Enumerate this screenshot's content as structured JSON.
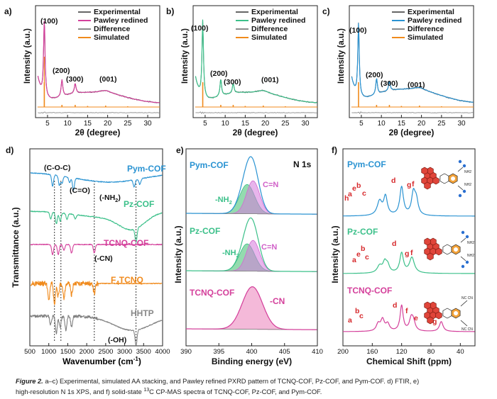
{
  "colors": {
    "pink": "#d4409b",
    "green": "#3cc08a",
    "blue": "#2a93d2",
    "orange": "#f08a1c",
    "gray": "#7a7a7a",
    "pyrBody": "#e0453a",
    "pyrRing": "#e07a1a",
    "nitrogen": "#2a6fd0",
    "labelRed": "#d6282b"
  },
  "caption": {
    "prefix": "Figure 2.",
    "line1": "a–c) Experimental, simulated AA stacking, and Pawley refined PXRD pattern of TCNQ-COF, Pz-COF, and Pym-COF. d) FTIR, e)",
    "line2a": "high-resolution N  1s XPS, and f) solid-state ",
    "line2sup": "13",
    "line2b": "C CP-MAS spectra of TCNQ-COF, Pz-COF, and Pym-COF."
  },
  "chart_data": [
    {
      "type": "line",
      "panel": "a)",
      "xlabel": "2θ (degree)",
      "ylabel": "Intensity (a.u.)",
      "xlim": [
        2,
        33
      ],
      "xticks": [
        5,
        10,
        15,
        20,
        25,
        30
      ],
      "legend": [
        "Experimental",
        "Pawley redined",
        "Difference",
        "Simulated"
      ],
      "peak_labels": [
        "(100)",
        "(200)",
        "(300)",
        "(001)"
      ],
      "peaks_deg": [
        4.2,
        8.6,
        11.9,
        19.5
      ],
      "series": [
        {
          "name": "Experimental",
          "color_key": "gray"
        },
        {
          "name": "Pawley redined",
          "color_key": "pink"
        },
        {
          "name": "Difference",
          "color_key": "gray"
        },
        {
          "name": "Simulated",
          "color_key": "orange"
        }
      ]
    },
    {
      "type": "line",
      "panel": "b)",
      "xlabel": "2θ (degree)",
      "ylabel": "Intensity (a.u.)",
      "xlim": [
        2,
        33
      ],
      "xticks": [
        5,
        10,
        15,
        20,
        25,
        30
      ],
      "legend": [
        "Experimental",
        "Pawley redined",
        "Difference",
        "Simulated"
      ],
      "peak_labels": [
        "(100)",
        "(200)",
        "(300)",
        "(001)"
      ],
      "peaks_deg": [
        4.4,
        8.9,
        12.0,
        19.5
      ],
      "series": [
        {
          "name": "Experimental",
          "color_key": "gray"
        },
        {
          "name": "Pawley redined",
          "color_key": "green"
        },
        {
          "name": "Difference",
          "color_key": "gray"
        },
        {
          "name": "Simulated",
          "color_key": "orange"
        }
      ]
    },
    {
      "type": "line",
      "panel": "c)",
      "xlabel": "2θ (degree)",
      "ylabel": "Intensity (a.u.)",
      "xlim": [
        2,
        33
      ],
      "xticks": [
        5,
        10,
        15,
        20,
        25,
        30
      ],
      "legend": [
        "Experimental",
        "Pawley redined",
        "Difference",
        "Simulated"
      ],
      "peak_labels": [
        "(100)",
        "(200)",
        "(300)",
        "(001)"
      ],
      "peaks_deg": [
        4.3,
        8.8,
        12.0,
        19.5
      ],
      "series": [
        {
          "name": "Experimental",
          "color_key": "gray"
        },
        {
          "name": "Pawley redined",
          "color_key": "blue"
        },
        {
          "name": "Difference",
          "color_key": "gray"
        },
        {
          "name": "Simulated",
          "color_key": "orange"
        }
      ]
    },
    {
      "type": "line",
      "panel": "d)",
      "xlabel": "Wavenumber (cm⁻¹)",
      "ylabel": "Transmittance (a.u.)",
      "xlim": [
        500,
        4000
      ],
      "xticks": [
        500,
        1000,
        1500,
        2000,
        2500,
        3000,
        3500,
        4000
      ],
      "series_labels": [
        "Pym-COF",
        "Pz-COF",
        "TCNQ-COF",
        "F4TCNQ",
        "HHTP"
      ],
      "annotations": [
        "(C-O-C)",
        "(C=O)",
        "(-NH2)",
        "(-CN)",
        "(-OH)"
      ],
      "marker_lines_cm": [
        1150,
        1320,
        2200,
        3300
      ]
    },
    {
      "type": "line",
      "panel": "e)",
      "title": "N 1s",
      "xlabel": "Binding energy (eV)",
      "ylabel": "Intensity (a.u.)",
      "xlim": [
        390,
        410
      ],
      "xticks": [
        390,
        395,
        400,
        405,
        410
      ],
      "series_labels": [
        "Pym-COF",
        "Pz-COF",
        "TCNQ-COF"
      ],
      "component_labels": [
        "-NH2",
        "C=N",
        "-CN"
      ],
      "peaks_eV": {
        "NH2": 399.3,
        "C=N": 400.2,
        "CN": 400.1
      }
    },
    {
      "type": "line",
      "panel": "f)",
      "xlabel": "Chemical Shift (ppm)",
      "ylabel": "Intensity (a.u.)",
      "xlim": [
        200,
        20
      ],
      "xticks": [
        200,
        160,
        120,
        80,
        40
      ],
      "series_labels": [
        "Pym-COF",
        "Pz-COF",
        "TCNQ-COF"
      ],
      "peak_letters": [
        "a",
        "b",
        "c",
        "d",
        "e",
        "f",
        "g",
        "h"
      ]
    }
  ]
}
